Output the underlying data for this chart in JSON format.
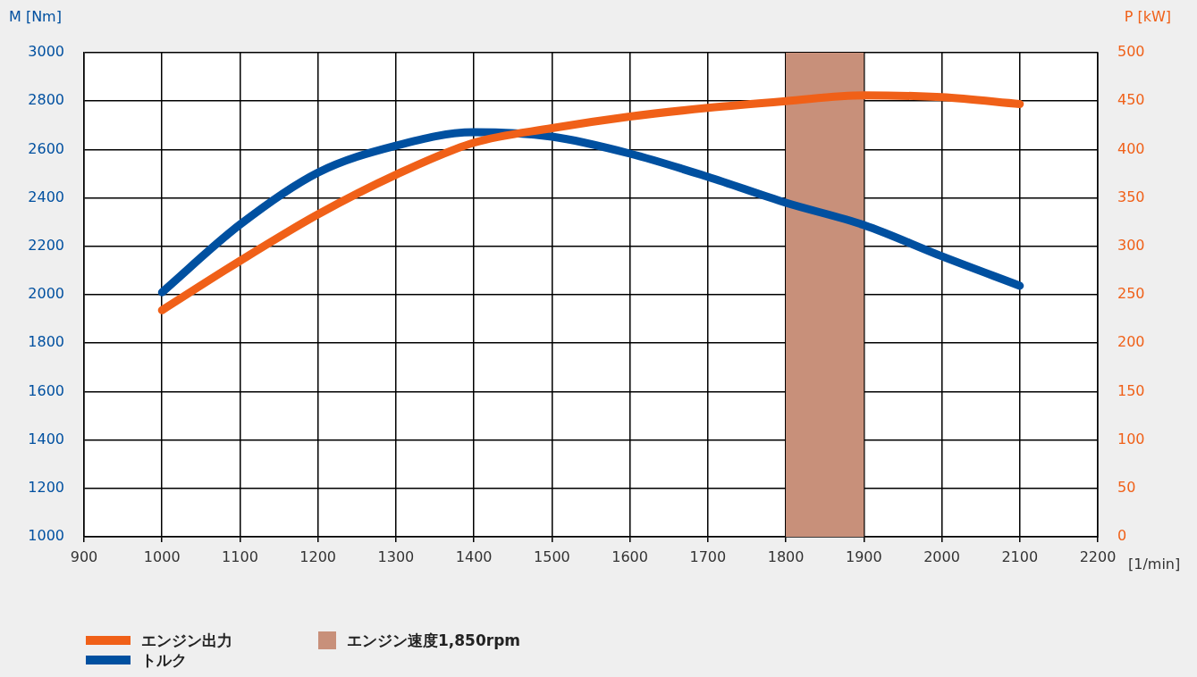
{
  "chart_data": {
    "type": "line",
    "xlabel": "[1/min]",
    "ylabel": "M [Nm]",
    "y2label": "P [kW]",
    "x": [
      1000,
      1100,
      1200,
      1300,
      1400,
      1500,
      1600,
      1700,
      1800,
      1900,
      2000,
      2100
    ],
    "series": [
      {
        "name": "エンジン出力",
        "color": "#f06018",
        "axis": "y2",
        "values": [
          234,
          285,
          333,
          374,
          407,
          422,
          434,
          443,
          450,
          456,
          454,
          447
        ]
      },
      {
        "name": "トルク",
        "color": "#0050a0",
        "values": [
          2010,
          2290,
          2505,
          2616,
          2672,
          2653,
          2583,
          2487,
          2380,
          2288,
          2159,
          2037
        ]
      }
    ],
    "xlim": [
      900,
      2200
    ],
    "xticks": [
      900,
      1000,
      1100,
      1200,
      1300,
      1400,
      1500,
      1600,
      1700,
      1800,
      1900,
      2000,
      2100,
      2200
    ],
    "ylim": [
      1000,
      3000
    ],
    "yticks": [
      1000,
      1200,
      1400,
      1600,
      1800,
      2000,
      2200,
      2400,
      2600,
      2800,
      3000
    ],
    "y2lim": [
      0,
      500
    ],
    "y2ticks": [
      0,
      50,
      100,
      150,
      200,
      250,
      300,
      350,
      400,
      450,
      500
    ],
    "bands": [
      {
        "axis": "x",
        "from": 1800,
        "to": 1900,
        "label": "エンジン速度1,850rpm",
        "color": "#c8907a"
      }
    ],
    "grid": true,
    "legend": "bottom"
  }
}
